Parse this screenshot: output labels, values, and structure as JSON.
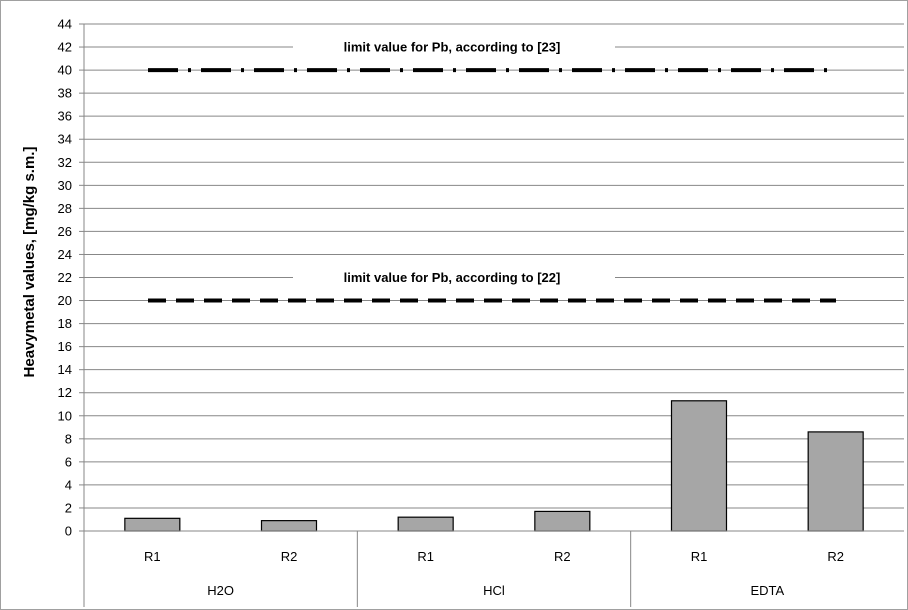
{
  "chart_data": {
    "type": "bar",
    "title": "",
    "ylabel": "Heavymetal values, [mg/kg s.m.]",
    "ylim": [
      0,
      44
    ],
    "ytick_step": 2,
    "grid": true,
    "groups": [
      {
        "label": "H2O",
        "categories": [
          "R1",
          "R2"
        ],
        "values": [
          1.1,
          0.9
        ]
      },
      {
        "label": "HCl",
        "categories": [
          "R1",
          "R2"
        ],
        "values": [
          1.2,
          1.7
        ]
      },
      {
        "label": "EDTA",
        "categories": [
          "R1",
          "R2"
        ],
        "values": [
          11.3,
          8.6
        ]
      }
    ],
    "bar_color": "#a6a6a6",
    "reference_lines": [
      {
        "value": 40,
        "label": "limit value for Pb, according to [23]",
        "style": "dash-dot"
      },
      {
        "value": 20,
        "label": "limit value for Pb, according to [22]",
        "style": "dash"
      }
    ]
  }
}
